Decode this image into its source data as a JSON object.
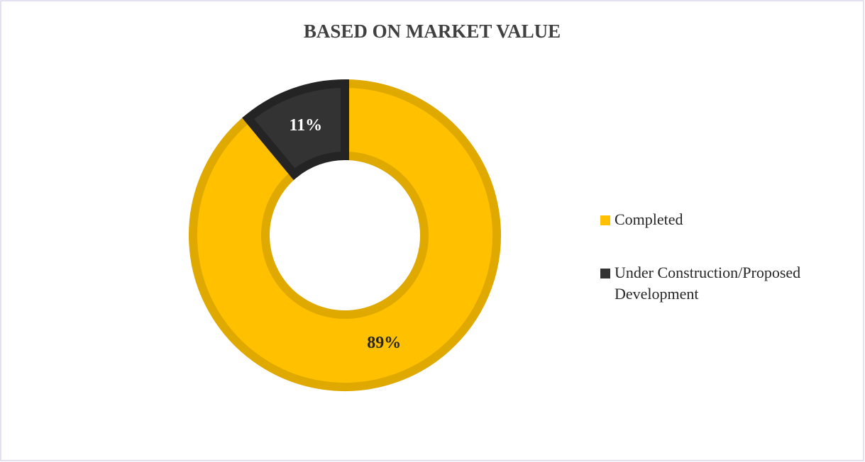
{
  "chart_data": {
    "type": "donut",
    "title": "BASED ON MARKET VALUE",
    "categories": [
      "Completed",
      "Under Construction/Proposed Development"
    ],
    "values": [
      89,
      11
    ],
    "value_labels": [
      "89%",
      "11%"
    ],
    "colors": [
      "#ffc000",
      "#333333"
    ]
  }
}
